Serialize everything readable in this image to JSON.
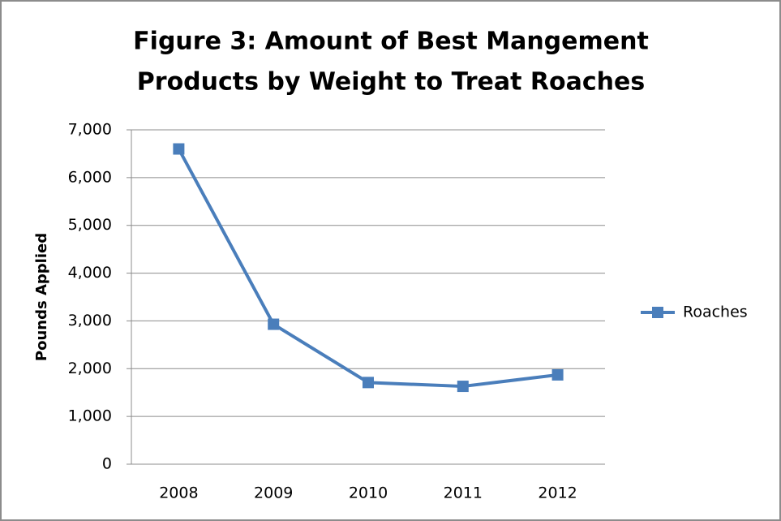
{
  "chart_data": {
    "type": "line",
    "title": [
      "Figure 3: Amount of Best Mangement",
      "Products by Weight to Treat Roaches"
    ],
    "y_label": "Pounds Applied",
    "categories": [
      "2008",
      "2009",
      "2010",
      "2011",
      "2012"
    ],
    "series": [
      {
        "name": "Roaches",
        "color": "#4a7ebb",
        "values": [
          6600,
          2930,
          1710,
          1630,
          1870
        ]
      }
    ],
    "ylim": [
      0,
      7000
    ],
    "yticks": [
      0,
      {
        "value": 1000,
        "label": "1,000"
      },
      {
        "value": 2000,
        "label": "2,000"
      },
      {
        "value": 3000,
        "label": "3,000"
      },
      {
        "value": 4000,
        "label": "4,000"
      },
      {
        "value": 5000,
        "label": "5,000"
      },
      {
        "value": 6000,
        "label": "6,000"
      },
      {
        "value": 7000,
        "label": "7,000"
      }
    ],
    "grid": true,
    "legend": "right"
  }
}
